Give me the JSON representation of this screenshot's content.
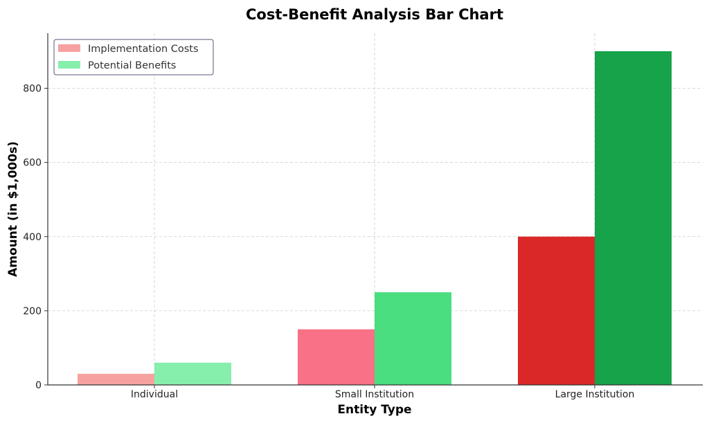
{
  "chart_data": {
    "type": "bar",
    "title": "Cost-Benefit Analysis Bar Chart",
    "xlabel": "Entity Type",
    "ylabel": "Amount (in $1,000s)",
    "categories": [
      "Individual",
      "Small Institution",
      "Large Institution"
    ],
    "ylim": [
      0,
      950
    ],
    "yticks": [
      0,
      200,
      400,
      600,
      800
    ],
    "grid": true,
    "legend_position": "top-left",
    "series": [
      {
        "name": "Implementation Costs",
        "values": [
          30,
          150,
          400
        ],
        "colors": [
          "#f8a1a1",
          "#f87186",
          "#da2828"
        ],
        "legend_color": "#f8a1a1"
      },
      {
        "name": "Potential Benefits",
        "values": [
          60,
          250,
          900
        ],
        "colors": [
          "#86efac",
          "#4ade80",
          "#16a34a"
        ],
        "legend_color": "#86efac"
      }
    ]
  }
}
